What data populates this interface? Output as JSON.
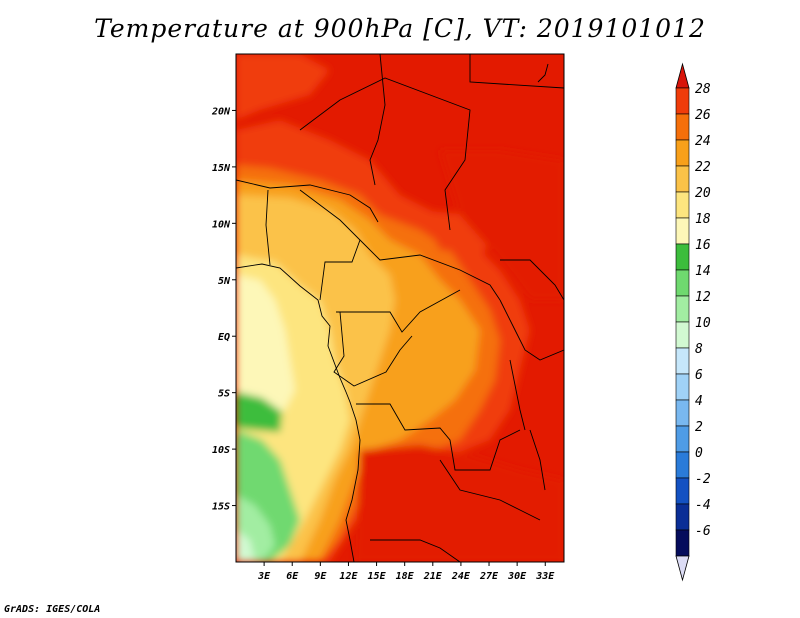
{
  "title": "Temperature at 900hPa [C], VT: 2019101012",
  "credit": "GrADS: IGES/COLA",
  "map": {
    "lon_range": [
      0,
      35
    ],
    "lat_range": [
      -20,
      25
    ],
    "lon_ticks": [
      "3E",
      "6E",
      "9E",
      "12E",
      "15E",
      "18E",
      "21E",
      "24E",
      "27E",
      "30E",
      "33E"
    ],
    "lat_ticks": [
      "20N",
      "15N",
      "10N",
      "5N",
      "EQ",
      "5S",
      "10S",
      "15S"
    ]
  },
  "colorbar": {
    "labels": [
      "28",
      "26",
      "24",
      "22",
      "20",
      "18",
      "16",
      "14",
      "12",
      "10",
      "8",
      "6",
      "4",
      "2",
      "0",
      "-2",
      "-4",
      "-6"
    ],
    "colors": [
      "#e31a00",
      "#f03c0a",
      "#f56f0a",
      "#f8a01a",
      "#fbc248",
      "#fde57f",
      "#fdf7b8",
      "#3cbd3c",
      "#6fd96f",
      "#a2eda2",
      "#d2f9d2",
      "#c6e7fb",
      "#a0d2f7",
      "#79b8f0",
      "#4f9ce6",
      "#2a7bd9",
      "#1351c2",
      "#0a2e96",
      "#050c5c"
    ],
    "top_arrow_color": "#d8140a",
    "bottom_arrow_color": "#dcdcf5"
  }
}
